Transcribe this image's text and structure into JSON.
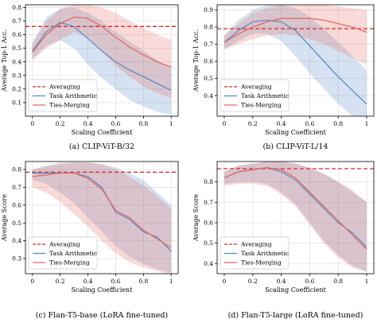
{
  "chart_data": [
    {
      "type": "line",
      "caption": "(a) CLIP-ViT-B/32",
      "xlabel": "Scaling Coefficient",
      "ylabel": "Average Top-1 Acc.",
      "xlim": [
        -0.05,
        1.05
      ],
      "ylim": [
        0.0,
        0.82
      ],
      "xticks": [
        0.0,
        0.2,
        0.4,
        0.6,
        0.8,
        1.0
      ],
      "yticks": [
        0.1,
        0.2,
        0.3,
        0.4,
        0.5,
        0.6,
        0.7,
        0.8
      ],
      "ytick_labels": [
        "0.1",
        "0.2",
        "0.3",
        "0.4",
        "0.5",
        "0.6",
        "0.7",
        "0.8"
      ],
      "legend_position": "lower-left",
      "averaging": 0.66,
      "series": [
        {
          "name": "Task Arithmetic",
          "color": "#5b8cc6",
          "x": [
            0.0,
            0.1,
            0.2,
            0.3,
            0.4,
            0.5,
            0.6,
            0.7,
            0.8,
            0.9,
            1.0
          ],
          "y": [
            0.48,
            0.62,
            0.69,
            0.66,
            0.57,
            0.48,
            0.4,
            0.34,
            0.29,
            0.24,
            0.19
          ],
          "lo": [
            0.42,
            0.52,
            0.56,
            0.5,
            0.38,
            0.28,
            0.2,
            0.12,
            0.07,
            0.03,
            0.01
          ],
          "hi": [
            0.54,
            0.73,
            0.79,
            0.8,
            0.76,
            0.7,
            0.62,
            0.55,
            0.48,
            0.41,
            0.35
          ]
        },
        {
          "name": "Ties-Merging",
          "color": "#e56b62",
          "x": [
            0.0,
            0.1,
            0.2,
            0.3,
            0.4,
            0.5,
            0.6,
            0.7,
            0.8,
            0.9,
            1.0
          ],
          "y": [
            0.47,
            0.6,
            0.68,
            0.73,
            0.72,
            0.66,
            0.58,
            0.51,
            0.45,
            0.4,
            0.36
          ],
          "lo": [
            0.41,
            0.5,
            0.56,
            0.62,
            0.58,
            0.48,
            0.37,
            0.29,
            0.22,
            0.17,
            0.13
          ],
          "hi": [
            0.53,
            0.7,
            0.79,
            0.82,
            0.82,
            0.8,
            0.76,
            0.7,
            0.65,
            0.6,
            0.56
          ]
        }
      ]
    },
    {
      "type": "line",
      "caption": "(b) CLIP-ViT-L/14",
      "xlabel": "Scaling Coefficient",
      "ylabel": "Average Top-1 Acc.",
      "xlim": [
        -0.05,
        1.05
      ],
      "ylim": [
        0.28,
        0.93
      ],
      "xticks": [
        0.0,
        0.2,
        0.4,
        0.6,
        0.8,
        1.0
      ],
      "yticks": [
        0.4,
        0.5,
        0.6,
        0.7,
        0.8,
        0.9
      ],
      "ytick_labels": [
        "0.4",
        "0.5",
        "0.6",
        "0.7",
        "0.8",
        "0.9"
      ],
      "legend_position": "lower-left",
      "averaging": 0.79,
      "series": [
        {
          "name": "Task Arithmetic",
          "color": "#5b8cc6",
          "x": [
            0.0,
            0.1,
            0.2,
            0.3,
            0.4,
            0.5,
            0.6,
            0.7,
            0.8,
            0.9,
            1.0
          ],
          "y": [
            0.71,
            0.78,
            0.83,
            0.84,
            0.83,
            0.78,
            0.69,
            0.6,
            0.51,
            0.43,
            0.35
          ],
          "lo": [
            0.67,
            0.72,
            0.76,
            0.76,
            0.72,
            0.63,
            0.53,
            0.44,
            0.35,
            0.28,
            0.22
          ],
          "hi": [
            0.75,
            0.84,
            0.9,
            0.93,
            0.93,
            0.91,
            0.86,
            0.79,
            0.71,
            0.63,
            0.55
          ]
        },
        {
          "name": "Ties-Merging",
          "color": "#e56b62",
          "x": [
            0.0,
            0.1,
            0.2,
            0.3,
            0.4,
            0.5,
            0.6,
            0.7,
            0.8,
            0.9,
            1.0
          ],
          "y": [
            0.71,
            0.76,
            0.8,
            0.83,
            0.85,
            0.85,
            0.85,
            0.84,
            0.82,
            0.8,
            0.77
          ],
          "lo": [
            0.67,
            0.7,
            0.73,
            0.75,
            0.76,
            0.75,
            0.73,
            0.7,
            0.66,
            0.62,
            0.58
          ],
          "hi": [
            0.75,
            0.82,
            0.88,
            0.91,
            0.93,
            0.93,
            0.93,
            0.93,
            0.92,
            0.91,
            0.9
          ]
        }
      ]
    },
    {
      "type": "line",
      "caption": "(c) Flan-T5-base (LoRA fine-tuned)",
      "xlabel": "Scaling Coefficient",
      "ylabel": "Average Score",
      "xlim": [
        -0.05,
        1.05
      ],
      "ylim": [
        0.215,
        0.845
      ],
      "xticks": [
        0.0,
        0.2,
        0.4,
        0.6,
        0.8,
        1.0
      ],
      "yticks": [
        0.3,
        0.4,
        0.5,
        0.6,
        0.7,
        0.8
      ],
      "ytick_labels": [
        "0.3",
        "0.4",
        "0.5",
        "0.6",
        "0.7",
        "0.8"
      ],
      "legend_position": "lower-left",
      "averaging": 0.785,
      "series": [
        {
          "name": "Task Arithmetic",
          "color": "#5b8cc6",
          "x": [
            0.0,
            0.1,
            0.2,
            0.3,
            0.4,
            0.5,
            0.6,
            0.7,
            0.8,
            0.9,
            1.0
          ],
          "y": [
            0.78,
            0.78,
            0.78,
            0.78,
            0.76,
            0.7,
            0.56,
            0.52,
            0.45,
            0.42,
            0.34
          ],
          "lo": [
            0.74,
            0.72,
            0.67,
            0.61,
            0.53,
            0.45,
            0.37,
            0.31,
            0.27,
            0.24,
            0.22
          ],
          "hi": [
            0.8,
            0.82,
            0.83,
            0.84,
            0.84,
            0.83,
            0.81,
            0.78,
            0.74,
            0.67,
            0.6
          ]
        },
        {
          "name": "Ties-Merging",
          "color": "#e56b62",
          "x": [
            0.0,
            0.1,
            0.2,
            0.3,
            0.4,
            0.5,
            0.6,
            0.7,
            0.8,
            0.9,
            1.0
          ],
          "y": [
            0.76,
            0.77,
            0.78,
            0.78,
            0.75,
            0.69,
            0.57,
            0.53,
            0.46,
            0.41,
            0.36
          ],
          "lo": [
            0.7,
            0.67,
            0.62,
            0.55,
            0.48,
            0.4,
            0.33,
            0.28,
            0.25,
            0.23,
            0.21
          ],
          "hi": [
            0.8,
            0.82,
            0.84,
            0.84,
            0.84,
            0.83,
            0.8,
            0.76,
            0.71,
            0.65,
            0.58
          ]
        }
      ]
    },
    {
      "type": "line",
      "caption": "(d) Flan-T5-large (LoRA fine-tuned)",
      "xlabel": "Scaling Coefficient",
      "ylabel": "Average Score",
      "xlim": [
        -0.05,
        1.05
      ],
      "ylim": [
        0.35,
        0.9
      ],
      "xticks": [
        0.0,
        0.2,
        0.4,
        0.6,
        0.8,
        1.0
      ],
      "yticks": [
        0.4,
        0.5,
        0.6,
        0.7,
        0.8
      ],
      "ytick_labels": [
        "0.4",
        "0.5",
        "0.6",
        "0.7",
        "0.8"
      ],
      "legend_position": "lower-left",
      "averaging": 0.865,
      "series": [
        {
          "name": "Task Arithmetic",
          "color": "#5b8cc6",
          "x": [
            0.0,
            0.1,
            0.2,
            0.3,
            0.4,
            0.5,
            0.6,
            0.7,
            0.8,
            0.9,
            1.0
          ],
          "y": [
            0.82,
            0.85,
            0.86,
            0.87,
            0.85,
            0.81,
            0.74,
            0.67,
            0.6,
            0.55,
            0.48
          ],
          "lo": [
            0.79,
            0.8,
            0.8,
            0.79,
            0.75,
            0.69,
            0.6,
            0.51,
            0.44,
            0.39,
            0.36
          ],
          "hi": [
            0.85,
            0.88,
            0.89,
            0.9,
            0.9,
            0.89,
            0.87,
            0.84,
            0.8,
            0.75,
            0.7
          ]
        },
        {
          "name": "Ties-Merging",
          "color": "#e56b62",
          "x": [
            0.0,
            0.1,
            0.2,
            0.3,
            0.4,
            0.5,
            0.6,
            0.7,
            0.8,
            0.9,
            1.0
          ],
          "y": [
            0.82,
            0.85,
            0.86,
            0.87,
            0.86,
            0.82,
            0.75,
            0.68,
            0.61,
            0.54,
            0.47
          ],
          "lo": [
            0.78,
            0.79,
            0.79,
            0.78,
            0.74,
            0.68,
            0.59,
            0.5,
            0.43,
            0.38,
            0.36
          ],
          "hi": [
            0.85,
            0.88,
            0.89,
            0.9,
            0.9,
            0.89,
            0.87,
            0.84,
            0.8,
            0.76,
            0.7
          ]
        }
      ]
    }
  ],
  "legend": {
    "averaging": "Averaging",
    "task_arithmetic": "Task Arithmetic",
    "ties_merging": "Ties-Merging"
  },
  "colors": {
    "averaging": "#d62728",
    "task_arithmetic": "#5b8cc6",
    "ties_merging": "#e56b62"
  }
}
